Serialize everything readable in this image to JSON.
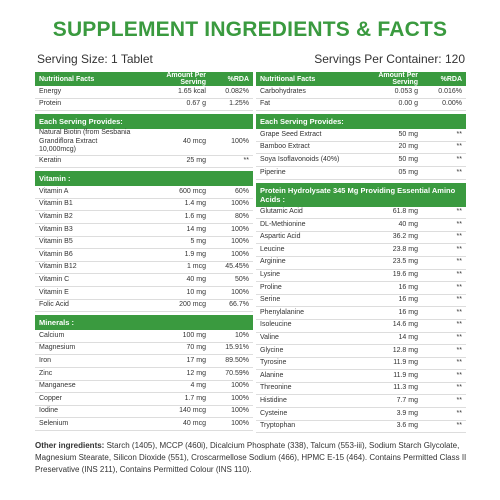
{
  "title": "SUPPLEMENT INGREDIENTS & FACTS",
  "serving_size": "Serving Size: 1 Tablet",
  "servings_per_container": "Servings Per Container: 120",
  "left_table": {
    "header": [
      "Nutritional Facts",
      "Amount Per Serving",
      "%RDA"
    ],
    "groups": [
      {
        "rows": [
          [
            "Energy",
            "1.65 kcal",
            "0.082%"
          ],
          [
            "Protein",
            "0.67 g",
            "1.25%"
          ]
        ]
      },
      {
        "title": "Each Serving Provides:",
        "rows": [
          [
            "Natural Biotin (from Sesbania Grandiflora Extract 10,000mcg)",
            "40 mcg",
            "100%"
          ],
          [
            "Keratin",
            "25 mg",
            "**"
          ]
        ]
      },
      {
        "title": "Vitamin :",
        "rows": [
          [
            "Vitamin A",
            "600 mcg",
            "60%"
          ],
          [
            "Vitamin B1",
            "1.4 mg",
            "100%"
          ],
          [
            "Vitamin B2",
            "1.6 mg",
            "80%"
          ],
          [
            "Vitamin B3",
            "14 mg",
            "100%"
          ],
          [
            "Vitamin B5",
            "5 mg",
            "100%"
          ],
          [
            "Vitamin B6",
            "1.9 mg",
            "100%"
          ],
          [
            "Vitamin B12",
            "1 mcg",
            "45.45%"
          ],
          [
            "Vitamin C",
            "40 mg",
            "50%"
          ],
          [
            "Vitamin E",
            "10 mg",
            "100%"
          ],
          [
            "Folic Acid",
            "200 mcg",
            "66.7%"
          ]
        ]
      },
      {
        "title": "Minerals :",
        "rows": [
          [
            "Calcium",
            "100 mg",
            "10%"
          ],
          [
            "Magnesium",
            "70 mg",
            "15.91%"
          ],
          [
            "Iron",
            "17 mg",
            "89.50%"
          ],
          [
            "Zinc",
            "12 mg",
            "70.59%"
          ],
          [
            "Manganese",
            "4 mg",
            "100%"
          ],
          [
            "Copper",
            "1.7 mg",
            "100%"
          ],
          [
            "Iodine",
            "140 mcg",
            "100%"
          ],
          [
            "Selenium",
            "40 mcg",
            "100%"
          ]
        ]
      }
    ]
  },
  "right_table": {
    "header": [
      "Nutritional Facts",
      "Amount Per Serving",
      "%RDA"
    ],
    "groups": [
      {
        "rows": [
          [
            "Carbohydrates",
            "0.053 g",
            "0.016%"
          ],
          [
            "Fat",
            "0.00 g",
            "0.00%"
          ]
        ]
      },
      {
        "title": "Each Serving Provides:",
        "rows": [
          [
            "Grape Seed Extract",
            "50 mg",
            "**"
          ],
          [
            "Bamboo Extract",
            "20 mg",
            "**"
          ],
          [
            "Soya Isoflavonoids (40%)",
            "50 mg",
            "**"
          ],
          [
            "Piperine",
            "05 mg",
            "**"
          ]
        ]
      },
      {
        "title": "Protein Hydrolysate 345 Mg Providing Essential Amino Acids :",
        "rows": [
          [
            "Glutamic Acid",
            "61.8 mg",
            "**"
          ],
          [
            "DL-Methionine",
            "40 mg",
            "**"
          ],
          [
            "Aspartic Acid",
            "36.2 mg",
            "**"
          ],
          [
            "Leucine",
            "23.8 mg",
            "**"
          ],
          [
            "Arginine",
            "23.5 mg",
            "**"
          ],
          [
            "Lysine",
            "19.6 mg",
            "**"
          ],
          [
            "Proline",
            "16 mg",
            "**"
          ],
          [
            "Serine",
            "16 mg",
            "**"
          ],
          [
            "Phenylalanine",
            "16 mg",
            "**"
          ],
          [
            "Isoleucine",
            "14.6 mg",
            "**"
          ],
          [
            "Valine",
            "14 mg",
            "**"
          ],
          [
            "Glycine",
            "12.8 mg",
            "**"
          ],
          [
            "Tyrosine",
            "11.9 mg",
            "**"
          ],
          [
            "Alanine",
            "11.9 mg",
            "**"
          ],
          [
            "Threonine",
            "11.3 mg",
            "**"
          ],
          [
            "Histidine",
            "7.7 mg",
            "**"
          ],
          [
            "Cysteine",
            "3.9 mg",
            "**"
          ],
          [
            "Tryptophan",
            "3.6 mg",
            "**"
          ]
        ]
      }
    ]
  },
  "footer": {
    "label": "Other ingredients:",
    "text": "Starch (1405), MCCP (460i), Dicalcium Phosphate (338), Talcum (553-iii), Sodium Starch Glycolate, Magnesium Stearate, Silicon Dioxide (551), Croscarmellose Sodium (466), HPMC E-15 (464). Contains Permitted Class II Preservative (INS 211), Contains Permitted Colour (INS 110)."
  }
}
